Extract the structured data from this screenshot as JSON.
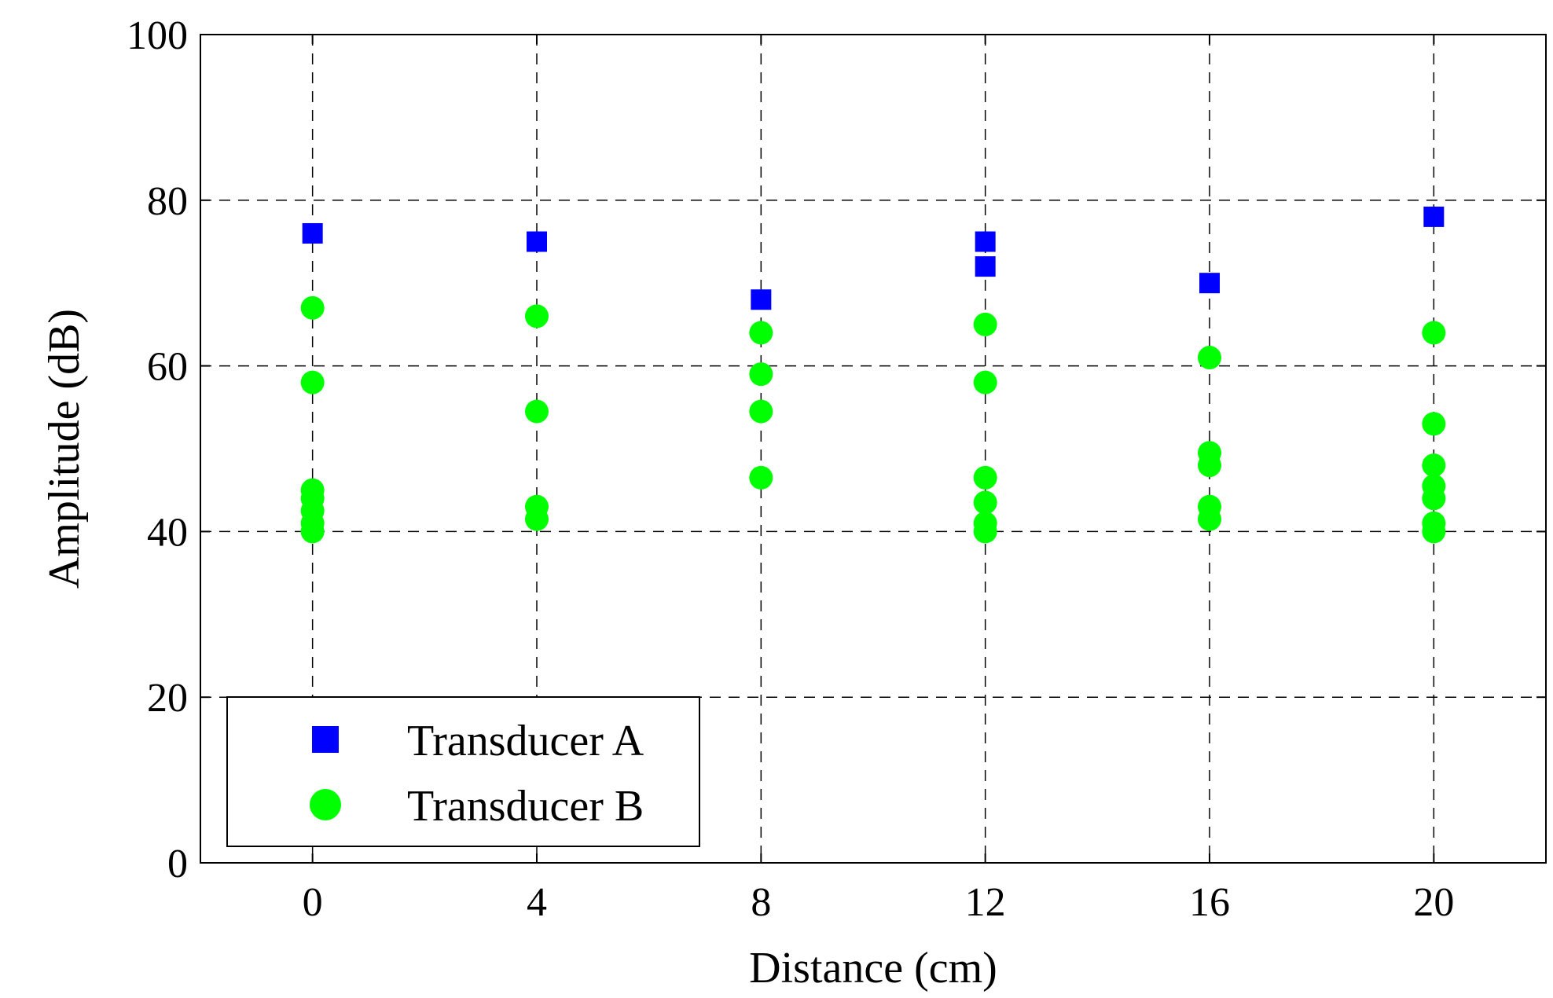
{
  "chart_data": {
    "type": "scatter",
    "xlabel": "Distance (cm)",
    "ylabel": "Amplitude (dB)",
    "xlim": [
      -2,
      22
    ],
    "ylim": [
      0,
      100
    ],
    "xticks": [
      0,
      4,
      8,
      12,
      16,
      20
    ],
    "yticks": [
      0,
      20,
      40,
      60,
      80,
      100
    ],
    "grid": true,
    "legend_position": "bottom-left",
    "series": [
      {
        "name": "Transducer A",
        "marker": "square",
        "color": "#0000ff",
        "points": [
          [
            0,
            76
          ],
          [
            4,
            75
          ],
          [
            8,
            68
          ],
          [
            12,
            75
          ],
          [
            12,
            72
          ],
          [
            16,
            70
          ],
          [
            20,
            78
          ]
        ]
      },
      {
        "name": "Transducer B",
        "marker": "circle",
        "color": "#00ff00",
        "points": [
          [
            0,
            67
          ],
          [
            0,
            58
          ],
          [
            0,
            45
          ],
          [
            0,
            44
          ],
          [
            0,
            42.5
          ],
          [
            0,
            41
          ],
          [
            0,
            40
          ],
          [
            4,
            66
          ],
          [
            4,
            54.5
          ],
          [
            4,
            43
          ],
          [
            4,
            41.5
          ],
          [
            8,
            64
          ],
          [
            8,
            59
          ],
          [
            8,
            54.5
          ],
          [
            8,
            46.5
          ],
          [
            12,
            65
          ],
          [
            12,
            58
          ],
          [
            12,
            46.5
          ],
          [
            12,
            43.5
          ],
          [
            12,
            41
          ],
          [
            12,
            40
          ],
          [
            16,
            61
          ],
          [
            16,
            49.5
          ],
          [
            16,
            48
          ],
          [
            16,
            43
          ],
          [
            16,
            41.5
          ],
          [
            20,
            64
          ],
          [
            20,
            53
          ],
          [
            20,
            48
          ],
          [
            20,
            45.5
          ],
          [
            20,
            44
          ],
          [
            20,
            41
          ],
          [
            20,
            40
          ]
        ]
      }
    ]
  }
}
